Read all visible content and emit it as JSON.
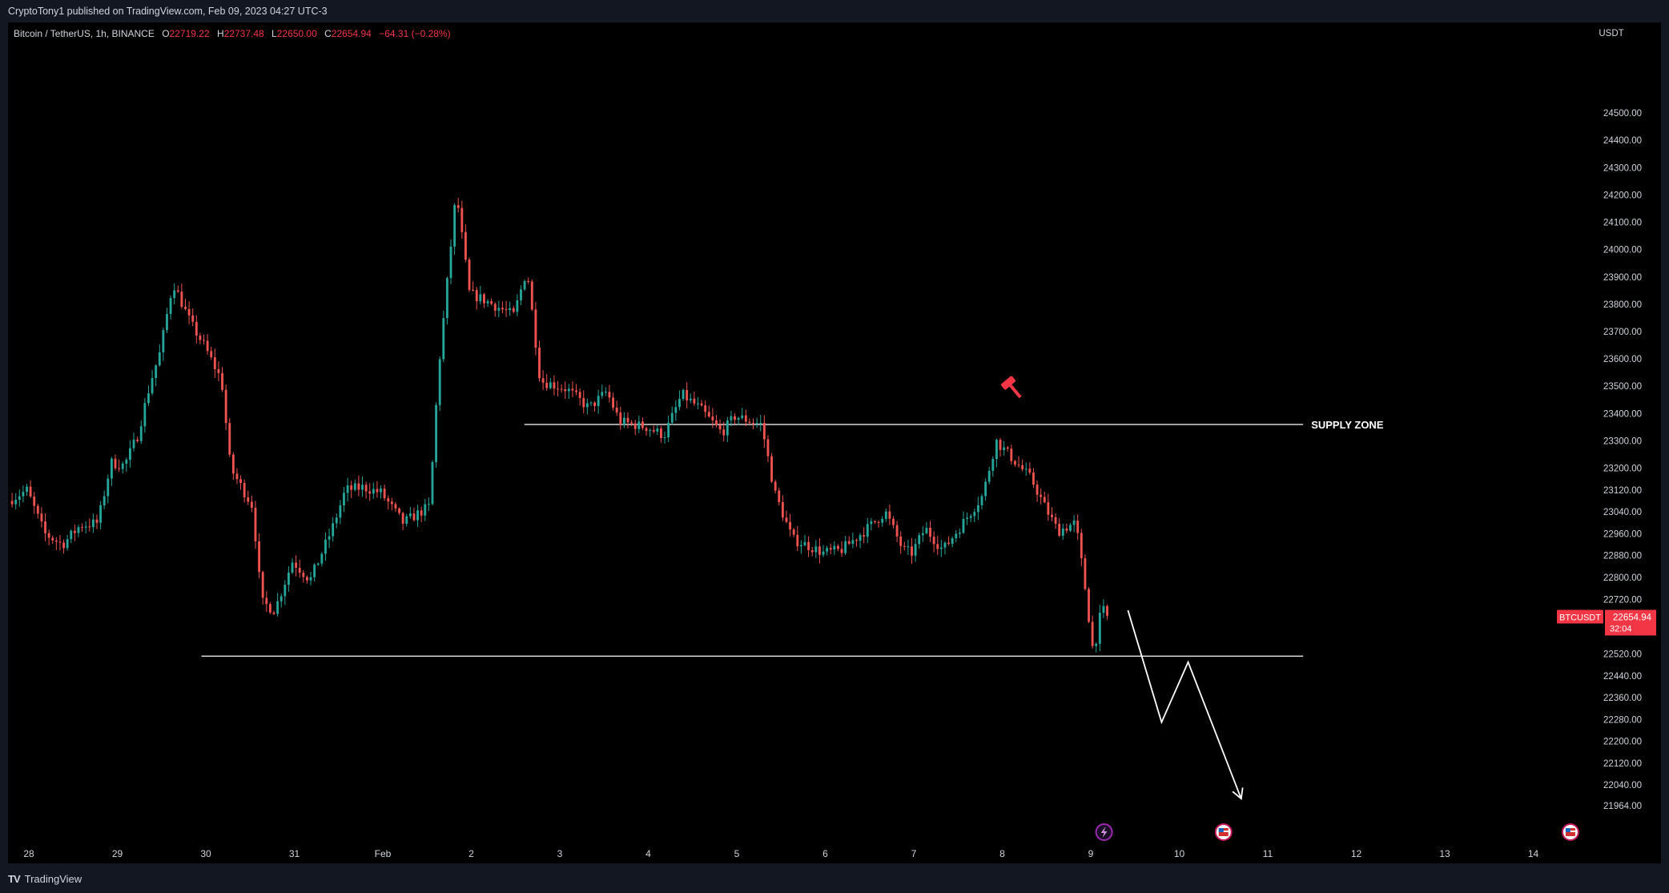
{
  "header": {
    "publish_line": "CryptoTony1 published on TradingView.com, Feb 09, 2023 04:27 UTC-3"
  },
  "legend": {
    "symbol": "Bitcoin / TetherUS, 1h, BINANCE",
    "o_label": "O",
    "o_value": "22719.22",
    "h_label": "H",
    "h_value": "22737.48",
    "l_label": "L",
    "l_value": "22650.00",
    "c_label": "C",
    "c_value": "22654.94",
    "change": "−64.31 (−0.28%)"
  },
  "footer": {
    "brand": "TradingView",
    "logo": "TV"
  },
  "colors": {
    "up": "#26a69a",
    "down": "#ef5350",
    "background": "#000000",
    "axis_text": "#d1d4dc",
    "price_tag": "#f23645",
    "annotation": "#ffffff"
  },
  "icons": [
    "hammer-icon",
    "lightning-event-icon",
    "us-flag-event-icon"
  ],
  "chart_data": {
    "type": "candlestick",
    "symbol": "BTCUSDT",
    "timeframe": "1h",
    "y_unit": "USDT",
    "ylim": [
      21900,
      24600
    ],
    "y_ticks": [
      {
        "value": 24500,
        "label": "24500.00"
      },
      {
        "value": 24400,
        "label": "24400.00"
      },
      {
        "value": 24300,
        "label": "24300.00"
      },
      {
        "value": 24200,
        "label": "24200.00"
      },
      {
        "value": 24100,
        "label": "24100.00"
      },
      {
        "value": 24000,
        "label": "24000.00"
      },
      {
        "value": 23900,
        "label": "23900.00"
      },
      {
        "value": 23800,
        "label": "23800.00"
      },
      {
        "value": 23700,
        "label": "23700.00"
      },
      {
        "value": 23600,
        "label": "23600.00"
      },
      {
        "value": 23500,
        "label": "23500.00"
      },
      {
        "value": 23400,
        "label": "23400.00"
      },
      {
        "value": 23300,
        "label": "23300.00"
      },
      {
        "value": 23200,
        "label": "23200.00"
      },
      {
        "value": 23120,
        "label": "23120.00"
      },
      {
        "value": 23040,
        "label": "23040.00"
      },
      {
        "value": 22960,
        "label": "22960.00"
      },
      {
        "value": 22880,
        "label": "22880.00"
      },
      {
        "value": 22800,
        "label": "22800.00"
      },
      {
        "value": 22720,
        "label": "22720.00"
      },
      {
        "value": 22520,
        "label": "22520.00"
      },
      {
        "value": 22440,
        "label": "22440.00"
      },
      {
        "value": 22360,
        "label": "22360.00"
      },
      {
        "value": 22280,
        "label": "22280.00"
      },
      {
        "value": 22200,
        "label": "22200.00"
      },
      {
        "value": 22120,
        "label": "22120.00"
      },
      {
        "value": 22040,
        "label": "22040.00"
      },
      {
        "value": 21964,
        "label": "21964.00"
      }
    ],
    "x_ticks": [
      {
        "day": 0,
        "label": "28"
      },
      {
        "day": 1,
        "label": "29"
      },
      {
        "day": 2,
        "label": "30"
      },
      {
        "day": 3,
        "label": "31"
      },
      {
        "day": 4,
        "label": "Feb"
      },
      {
        "day": 5,
        "label": "2"
      },
      {
        "day": 6,
        "label": "3"
      },
      {
        "day": 7,
        "label": "4"
      },
      {
        "day": 8,
        "label": "5"
      },
      {
        "day": 9,
        "label": "6"
      },
      {
        "day": 10,
        "label": "7"
      },
      {
        "day": 11,
        "label": "8"
      },
      {
        "day": 12,
        "label": "9"
      },
      {
        "day": 13,
        "label": "10"
      },
      {
        "day": 14,
        "label": "11"
      },
      {
        "day": 15,
        "label": "12"
      },
      {
        "day": 16,
        "label": "13"
      },
      {
        "day": 17,
        "label": "14"
      }
    ],
    "price_path": [
      [
        -0.21,
        23080
      ],
      [
        0.0,
        23120
      ],
      [
        0.2,
        22960
      ],
      [
        0.4,
        22920
      ],
      [
        0.6,
        22990
      ],
      [
        0.8,
        23000
      ],
      [
        0.95,
        23220
      ],
      [
        1.1,
        23210
      ],
      [
        1.25,
        23320
      ],
      [
        1.4,
        23520
      ],
      [
        1.5,
        23620
      ],
      [
        1.65,
        23880
      ],
      [
        1.85,
        23730
      ],
      [
        2.0,
        23650
      ],
      [
        2.2,
        23520
      ],
      [
        2.3,
        23200
      ],
      [
        2.55,
        23060
      ],
      [
        2.65,
        22710
      ],
      [
        2.8,
        22680
      ],
      [
        3.0,
        22860
      ],
      [
        3.2,
        22790
      ],
      [
        3.45,
        22980
      ],
      [
        3.6,
        23120
      ],
      [
        3.8,
        23130
      ],
      [
        4.0,
        23110
      ],
      [
        4.25,
        23000
      ],
      [
        4.55,
        23060
      ],
      [
        4.65,
        23560
      ],
      [
        4.85,
        24210
      ],
      [
        5.0,
        23840
      ],
      [
        5.2,
        23810
      ],
      [
        5.5,
        23760
      ],
      [
        5.65,
        23930
      ],
      [
        5.8,
        23520
      ],
      [
        6.1,
        23490
      ],
      [
        6.35,
        23420
      ],
      [
        6.55,
        23480
      ],
      [
        6.7,
        23370
      ],
      [
        7.0,
        23350
      ],
      [
        7.2,
        23320
      ],
      [
        7.4,
        23470
      ],
      [
        7.6,
        23420
      ],
      [
        7.85,
        23330
      ],
      [
        8.0,
        23390
      ],
      [
        8.3,
        23360
      ],
      [
        8.45,
        23110
      ],
      [
        8.65,
        22940
      ],
      [
        8.8,
        22920
      ],
      [
        9.0,
        22890
      ],
      [
        9.2,
        22900
      ],
      [
        9.5,
        22980
      ],
      [
        9.7,
        23040
      ],
      [
        9.9,
        22900
      ],
      [
        10.0,
        22890
      ],
      [
        10.15,
        22980
      ],
      [
        10.35,
        22900
      ],
      [
        10.6,
        23010
      ],
      [
        10.8,
        23100
      ],
      [
        10.95,
        23300
      ],
      [
        11.15,
        23230
      ],
      [
        11.35,
        23160
      ],
      [
        11.5,
        23060
      ],
      [
        11.65,
        22970
      ],
      [
        11.85,
        23000
      ],
      [
        11.95,
        22780
      ],
      [
        12.05,
        22520
      ],
      [
        12.15,
        22700
      ],
      [
        12.18,
        22655
      ]
    ],
    "levels": [
      {
        "name": "SUPPLY ZONE",
        "label": "SUPPLY ZONE",
        "value": 23360,
        "from_day": 5.6,
        "to_day": 14.4
      },
      {
        "name": "support",
        "label": "",
        "value": 22512,
        "from_day": 1.95,
        "to_day": 14.4
      }
    ],
    "projection_path": [
      [
        12.42,
        22680
      ],
      [
        12.8,
        22270
      ],
      [
        13.1,
        22490
      ],
      [
        13.7,
        21990
      ]
    ],
    "current_price": {
      "symbol": "BTCUSDT",
      "value": 22654.94,
      "label": "22654.94",
      "countdown": "32:04"
    },
    "events": [
      {
        "day": 12.15,
        "icon": "lightning-event-icon"
      },
      {
        "day": 13.5,
        "icon": "us-flag-event-icon"
      },
      {
        "day": 17.42,
        "icon": "us-flag-event-icon"
      }
    ],
    "marker": {
      "day": 11.1,
      "value": 23500,
      "icon": "hammer-icon"
    }
  }
}
